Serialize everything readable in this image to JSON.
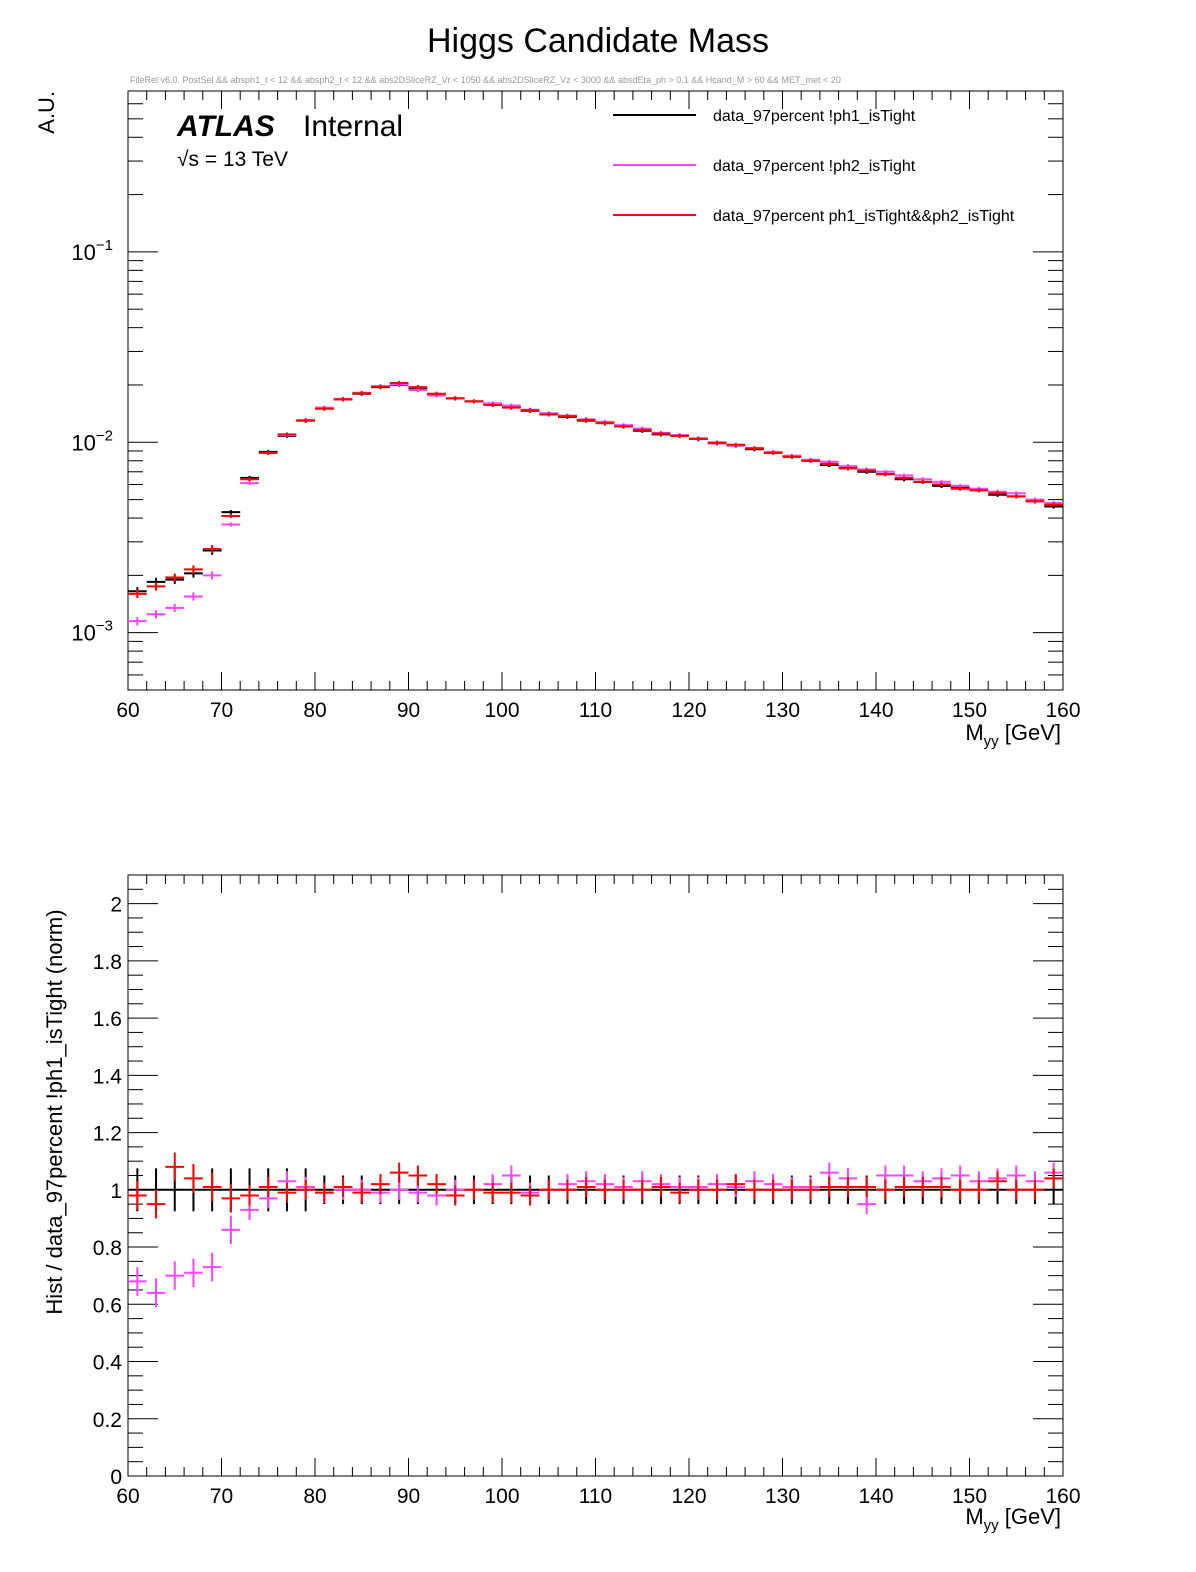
{
  "title": "Higgs Candidate Mass",
  "selection_text": "FileRel v6.0. PostSel &&  absph1_t < 12 && absph2_t < 12 && abs2DSliceRZ_Vr < 1050 && abs2DSliceRZ_Vz < 3000 && absdEta_ph > 0.1 && Hcand_M > 60 && MET_met < 20",
  "atlas_label": "ATLAS",
  "atlas_status": "Internal",
  "energy_label": "√s = 13 TeV",
  "colors": {
    "black": "#000000",
    "magenta": "#ff44ff",
    "red": "#ff0000"
  },
  "chart_data": [
    {
      "type": "scatter",
      "name": "main",
      "xlabel": "M_yy [GeV]",
      "ylabel": "A.U.",
      "xlim": [
        60,
        160
      ],
      "ylim": [
        0.0005,
        0.7
      ],
      "yscale": "log",
      "x_ticks": [
        60,
        70,
        80,
        90,
        100,
        110,
        120,
        130,
        140,
        150,
        160
      ],
      "y_tick_labels": [
        {
          "value": 0.1,
          "base": "10",
          "exp": "−1"
        },
        {
          "value": 0.01,
          "base": "10",
          "exp": "−2"
        },
        {
          "value": 0.001,
          "base": "10",
          "exp": "−3"
        }
      ],
      "legend_placement": "top-right",
      "series": [
        {
          "name": "data_97percent !ph1_isTight",
          "color": "#000000",
          "x": [
            61,
            63,
            65,
            67,
            69,
            71,
            73,
            75,
            77,
            79,
            81,
            83,
            85,
            87,
            89,
            91,
            93,
            95,
            97,
            99,
            101,
            103,
            105,
            107,
            109,
            111,
            113,
            115,
            117,
            119,
            121,
            123,
            125,
            127,
            129,
            131,
            133,
            135,
            137,
            139,
            141,
            143,
            145,
            147,
            149,
            151,
            153,
            155,
            157,
            159
          ],
          "y": [
            0.00165,
            0.00185,
            0.0019,
            0.00205,
            0.0027,
            0.0043,
            0.0065,
            0.0089,
            0.0108,
            0.013,
            0.0151,
            0.0168,
            0.018,
            0.0195,
            0.02,
            0.019,
            0.0178,
            0.017,
            0.0164,
            0.0158,
            0.0153,
            0.0148,
            0.0141,
            0.0136,
            0.013,
            0.0126,
            0.0121,
            0.0115,
            0.011,
            0.0108,
            0.0104,
            0.0099,
            0.0096,
            0.0092,
            0.0088,
            0.0084,
            0.008,
            0.0076,
            0.0074,
            0.007,
            0.0068,
            0.0064,
            0.0062,
            0.0059,
            0.0058,
            0.0056,
            0.0053,
            0.0052,
            0.0049,
            0.0046
          ]
        },
        {
          "name": "data_97percent !ph2_isTight",
          "color": "#ff44ff",
          "x": [
            61,
            63,
            65,
            67,
            69,
            71,
            73,
            75,
            77,
            79,
            81,
            83,
            85,
            87,
            89,
            91,
            93,
            95,
            97,
            99,
            101,
            103,
            105,
            107,
            109,
            111,
            113,
            115,
            117,
            119,
            121,
            123,
            125,
            127,
            129,
            131,
            133,
            135,
            137,
            139,
            141,
            143,
            145,
            147,
            149,
            151,
            153,
            155,
            157,
            159
          ],
          "y": [
            0.00115,
            0.00125,
            0.00135,
            0.00155,
            0.002,
            0.0037,
            0.0061,
            0.0088,
            0.0109,
            0.0131,
            0.0152,
            0.0169,
            0.0182,
            0.0197,
            0.0201,
            0.0188,
            0.0176,
            0.017,
            0.0164,
            0.016,
            0.0156,
            0.0147,
            0.0142,
            0.0138,
            0.0132,
            0.0128,
            0.0123,
            0.0118,
            0.0112,
            0.0109,
            0.0105,
            0.01,
            0.0096,
            0.0093,
            0.0089,
            0.0085,
            0.0081,
            0.0079,
            0.0075,
            0.0072,
            0.007,
            0.0067,
            0.0064,
            0.0062,
            0.0059,
            0.0057,
            0.0055,
            0.0054,
            0.005,
            0.0048
          ]
        },
        {
          "name": "data_97percent ph1_isTight&&ph2_isTight",
          "color": "#ff0000",
          "x": [
            61,
            63,
            65,
            67,
            69,
            71,
            73,
            75,
            77,
            79,
            81,
            83,
            85,
            87,
            89,
            91,
            93,
            95,
            97,
            99,
            101,
            103,
            105,
            107,
            109,
            111,
            113,
            115,
            117,
            119,
            121,
            123,
            125,
            127,
            129,
            131,
            133,
            135,
            137,
            139,
            141,
            143,
            145,
            147,
            149,
            151,
            153,
            155,
            157,
            159
          ],
          "y": [
            0.0016,
            0.00175,
            0.00195,
            0.00215,
            0.00275,
            0.0041,
            0.0064,
            0.0088,
            0.011,
            0.013,
            0.015,
            0.0168,
            0.0181,
            0.0196,
            0.0205,
            0.0195,
            0.018,
            0.017,
            0.0164,
            0.0157,
            0.0152,
            0.0146,
            0.014,
            0.0137,
            0.0131,
            0.0126,
            0.0121,
            0.0116,
            0.0111,
            0.0108,
            0.0104,
            0.0099,
            0.0097,
            0.0093,
            0.0088,
            0.0084,
            0.008,
            0.0077,
            0.0073,
            0.0071,
            0.0068,
            0.0065,
            0.0062,
            0.006,
            0.0057,
            0.0056,
            0.0054,
            0.0052,
            0.0049,
            0.0047
          ]
        }
      ]
    },
    {
      "type": "scatter",
      "name": "ratio",
      "xlabel": "M_yy [GeV]",
      "ylabel": "Hist / data_97percent !ph1_isTight (norm)",
      "xlim": [
        60,
        160
      ],
      "ylim": [
        0,
        2.1
      ],
      "x_ticks": [
        60,
        70,
        80,
        90,
        100,
        110,
        120,
        130,
        140,
        150,
        160
      ],
      "y_ticks": [
        "0",
        "0.2",
        "0.4",
        "0.6",
        "0.8",
        "1",
        "1.2",
        "1.4",
        "1.6",
        "1.8",
        "2"
      ],
      "series": [
        {
          "name": "data_97percent !ph1_isTight",
          "color": "#000000",
          "x": [
            61,
            63,
            65,
            67,
            69,
            71,
            73,
            75,
            77,
            79,
            81,
            83,
            85,
            87,
            89,
            91,
            93,
            95,
            97,
            99,
            101,
            103,
            105,
            107,
            109,
            111,
            113,
            115,
            117,
            119,
            121,
            123,
            125,
            127,
            129,
            131,
            133,
            135,
            137,
            139,
            141,
            143,
            145,
            147,
            149,
            151,
            153,
            155,
            157,
            159
          ],
          "y": [
            1,
            1,
            1,
            1,
            1,
            1,
            1,
            1,
            1,
            1,
            1,
            1,
            1,
            1,
            1,
            1,
            1,
            1,
            1,
            1,
            1,
            1,
            1,
            1,
            1,
            1,
            1,
            1,
            1,
            1,
            1,
            1,
            1,
            1,
            1,
            1,
            1,
            1,
            1,
            1,
            1,
            1,
            1,
            1,
            1,
            1,
            1,
            1,
            1,
            1
          ]
        },
        {
          "name": "data_97percent !ph2_isTight",
          "color": "#ff44ff",
          "x": [
            61,
            63,
            65,
            67,
            69,
            71,
            73,
            75,
            77,
            79,
            81,
            83,
            85,
            87,
            89,
            91,
            93,
            95,
            97,
            99,
            101,
            103,
            105,
            107,
            109,
            111,
            113,
            115,
            117,
            119,
            121,
            123,
            125,
            127,
            129,
            131,
            133,
            135,
            137,
            139,
            141,
            143,
            145,
            147,
            149,
            151,
            153,
            155,
            157,
            159
          ],
          "y": [
            0.68,
            0.64,
            0.7,
            0.71,
            0.73,
            0.86,
            0.93,
            0.97,
            1.03,
            1.01,
            0.99,
            1.0,
            1.0,
            0.99,
            1.0,
            0.99,
            0.98,
            1.0,
            1.0,
            1.02,
            1.05,
            0.99,
            1.0,
            1.02,
            1.03,
            1.02,
            1.01,
            1.03,
            1.02,
            1.01,
            1.01,
            1.02,
            1.01,
            1.03,
            1.02,
            1.01,
            1.01,
            1.06,
            1.04,
            0.95,
            1.05,
            1.05,
            1.03,
            1.04,
            1.05,
            1.03,
            1.04,
            1.05,
            1.03,
            1.06
          ]
        },
        {
          "name": "data_97percent ph1_isTight&&ph2_isTight",
          "color": "#ff0000",
          "x": [
            61,
            63,
            65,
            67,
            69,
            71,
            73,
            75,
            77,
            79,
            81,
            83,
            85,
            87,
            89,
            91,
            93,
            95,
            97,
            99,
            101,
            103,
            105,
            107,
            109,
            111,
            113,
            115,
            117,
            119,
            121,
            123,
            125,
            127,
            129,
            131,
            133,
            135,
            137,
            139,
            141,
            143,
            145,
            147,
            149,
            151,
            153,
            155,
            157,
            159
          ],
          "y": [
            0.98,
            0.95,
            1.08,
            1.04,
            1.01,
            0.97,
            0.98,
            1.01,
            0.99,
            1.0,
            0.99,
            1.01,
            0.99,
            1.02,
            1.06,
            1.05,
            1.02,
            0.98,
            1.0,
            0.99,
            0.99,
            0.98,
            1.0,
            1.0,
            1.01,
            1.0,
            1.0,
            1.0,
            1.01,
            0.99,
            1.0,
            1.0,
            1.02,
            1.0,
            1.0,
            1.0,
            1.0,
            1.01,
            1.01,
            1.01,
            1.0,
            1.01,
            1.01,
            1.01,
            1.0,
            1.0,
            1.03,
            1.0,
            1.0,
            1.04
          ]
        }
      ]
    }
  ]
}
